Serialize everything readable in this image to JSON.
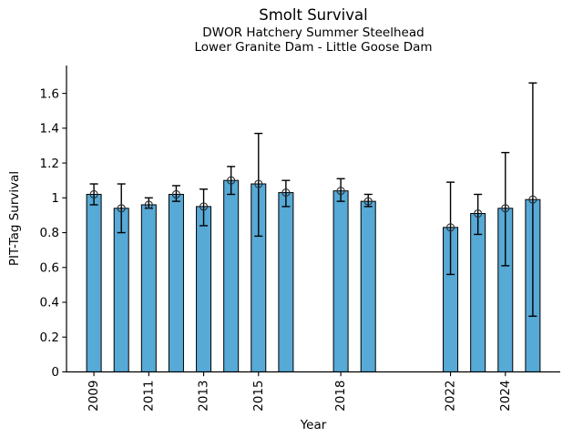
{
  "chart_data": {
    "type": "bar",
    "title": "Smolt Survival",
    "subtitle": [
      "DWOR Hatchery Summer Steelhead",
      "Lower Granite Dam - Little Goose Dam"
    ],
    "xlabel": "Year",
    "ylabel": "PIT-Tag Survival",
    "x": [
      2009,
      2010,
      2011,
      2012,
      2013,
      2014,
      2015,
      2016,
      2018,
      2019,
      2022,
      2023,
      2024,
      2025
    ],
    "values": [
      1.02,
      0.94,
      0.96,
      1.02,
      0.95,
      1.1,
      1.08,
      1.03,
      1.04,
      0.98,
      0.83,
      0.91,
      0.94,
      0.99
    ],
    "error_low": [
      0.96,
      0.8,
      0.94,
      0.98,
      0.84,
      1.02,
      0.78,
      0.95,
      0.98,
      0.95,
      0.56,
      0.79,
      0.61,
      0.32
    ],
    "error_high": [
      1.08,
      1.08,
      1.0,
      1.07,
      1.05,
      1.18,
      1.37,
      1.1,
      1.11,
      1.02,
      1.09,
      1.02,
      1.26,
      1.66
    ],
    "missing_years": [
      2017,
      2020,
      2021
    ],
    "xtick_years": [
      2009,
      2011,
      2013,
      2015,
      2018,
      2022,
      2024
    ],
    "xtick_labels": [
      "2009",
      "2011",
      "2013",
      "2015",
      "2018",
      "2022",
      "2024"
    ],
    "ytick_values": [
      0,
      0.2,
      0.4,
      0.6,
      0.8,
      1,
      1.2,
      1.4,
      1.6
    ],
    "ytick_labels": [
      "0",
      "0.2",
      "0.4",
      "0.6",
      "0.8",
      "1",
      "1.2",
      "1.4",
      "1.6"
    ],
    "xlim": [
      2008,
      2026
    ],
    "ylim": [
      0,
      1.76
    ],
    "grid": false,
    "legend": null,
    "bar_color": "#57a9d6",
    "bar_edge_color": "#000000",
    "errorbar_color": "#000000",
    "marker": "open-circle",
    "marker_color": "#2b2b2b",
    "background": "#ffffff"
  }
}
